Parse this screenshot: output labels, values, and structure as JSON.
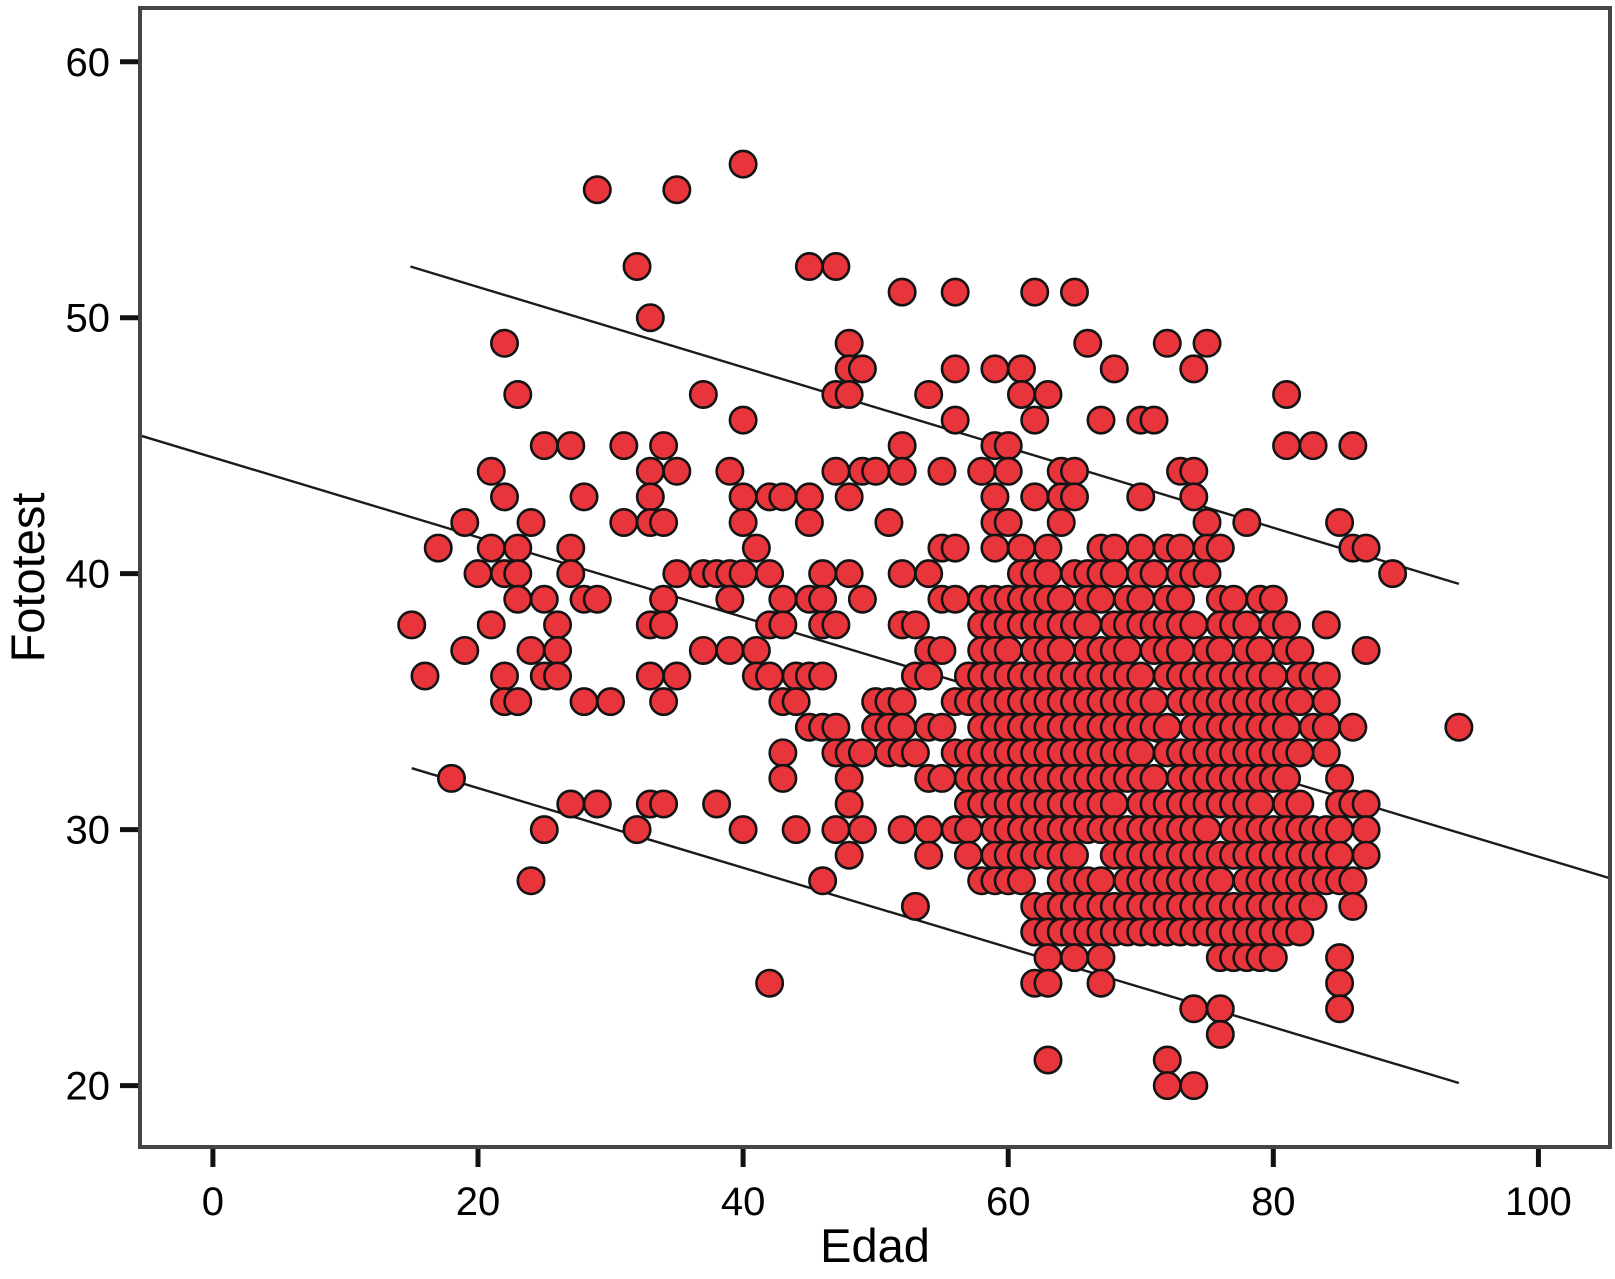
{
  "chart_data": {
    "type": "scatter",
    "title": "",
    "xlabel": "Edad",
    "ylabel": "Fototest",
    "x_ticks": [
      0,
      20,
      40,
      60,
      80,
      100
    ],
    "y_ticks": [
      20,
      30,
      40,
      50,
      60
    ],
    "xlim": [
      -5.5,
      105.4
    ],
    "ylim": [
      17.6,
      62.1
    ],
    "grid": false,
    "legend": "none",
    "marker": {
      "shape": "circle",
      "fill": "#e8353c",
      "stroke": "#141414",
      "radius_px": 13.2
    },
    "colors": {
      "background": "#ffffff",
      "frame": "#454545",
      "tick": "#111111",
      "fit_line": "#1b1b1b"
    },
    "lines": [
      {
        "name": "upper-confidence-line",
        "x1": 14.9,
        "y1": 52.0,
        "x2": 94.0,
        "y2": 39.6
      },
      {
        "name": "regression-line",
        "x1": -5.5,
        "y1": 45.4,
        "x2": 105.4,
        "y2": 28.1
      },
      {
        "name": "lower-confidence-line",
        "x1": 15.0,
        "y1": 32.4,
        "x2": 94.0,
        "y2": 20.1
      }
    ],
    "points_by_row": [
      {
        "y": 56,
        "xs": [
          40
        ]
      },
      {
        "y": 55,
        "xs": [
          29,
          35
        ]
      },
      {
        "y": 52,
        "xs": [
          32,
          45,
          47
        ]
      },
      {
        "y": 51,
        "xs": [
          52,
          56,
          62,
          65
        ]
      },
      {
        "y": 50,
        "xs": [
          33
        ]
      },
      {
        "y": 49,
        "xs": [
          22,
          48,
          66,
          72,
          75
        ]
      },
      {
        "y": 48,
        "xs": [
          48,
          49,
          56,
          59,
          61,
          68,
          74
        ]
      },
      {
        "y": 47,
        "xs": [
          23,
          37,
          47,
          48,
          54,
          61,
          63,
          81
        ]
      },
      {
        "y": 46,
        "xs": [
          40,
          56,
          62,
          67,
          70,
          71
        ]
      },
      {
        "y": 45,
        "xs": [
          25,
          27,
          31,
          34,
          52,
          59,
          60,
          81,
          83,
          86
        ]
      },
      {
        "y": 44,
        "xs": [
          21,
          33,
          35,
          39,
          47,
          49,
          50,
          52,
          55,
          58,
          60,
          64,
          65,
          73,
          74
        ]
      },
      {
        "y": 43,
        "xs": [
          22,
          28,
          33,
          40,
          42,
          43,
          45,
          48,
          59,
          62,
          64,
          65,
          70,
          74
        ]
      },
      {
        "y": 42,
        "xs": [
          19,
          24,
          31,
          33,
          34,
          40,
          45,
          51,
          59,
          60,
          64,
          75,
          78,
          85
        ]
      },
      {
        "y": 41,
        "xs": [
          17,
          21,
          23,
          27,
          41,
          55,
          56,
          59,
          61,
          63,
          67,
          68,
          70,
          72,
          73,
          75,
          76,
          86,
          87
        ]
      },
      {
        "y": 40,
        "xs": [
          20,
          22,
          23,
          27,
          35,
          37,
          38,
          39,
          40,
          42,
          46,
          48,
          52,
          54,
          61,
          62,
          63,
          65,
          66,
          67,
          68,
          70,
          71,
          73,
          74,
          75,
          89
        ]
      },
      {
        "y": 39,
        "xs": [
          23,
          25,
          28,
          29,
          34,
          39,
          43,
          45,
          46,
          49,
          55,
          56,
          58,
          59,
          60,
          61,
          62,
          63,
          64,
          66,
          67,
          69,
          70,
          72,
          73,
          76,
          77,
          79,
          80
        ]
      },
      {
        "y": 38,
        "xs": [
          15,
          21,
          26,
          33,
          34,
          42,
          43,
          46,
          47,
          52,
          53,
          58,
          59,
          60,
          61,
          62,
          63,
          64,
          65,
          66,
          68,
          69,
          70,
          71,
          72,
          73,
          74,
          76,
          77,
          78,
          80,
          81,
          84
        ]
      },
      {
        "y": 37,
        "xs": [
          19,
          24,
          26,
          37,
          39,
          41,
          54,
          55,
          58,
          59,
          60,
          62,
          63,
          64,
          66,
          67,
          68,
          69,
          71,
          72,
          73,
          75,
          76,
          78,
          79,
          81,
          82,
          87
        ]
      },
      {
        "y": 36,
        "xs": [
          16,
          22,
          25,
          26,
          33,
          35,
          41,
          42,
          44,
          45,
          46,
          53,
          54,
          57,
          58,
          59,
          60,
          61,
          62,
          63,
          64,
          65,
          66,
          67,
          68,
          69,
          70,
          72,
          73,
          74,
          75,
          76,
          77,
          78,
          79,
          80,
          82,
          83,
          84
        ]
      },
      {
        "y": 35,
        "xs": [
          22,
          23,
          28,
          30,
          34,
          43,
          44,
          50,
          51,
          52,
          56,
          57,
          58,
          59,
          60,
          61,
          62,
          63,
          64,
          65,
          66,
          67,
          68,
          69,
          70,
          71,
          73,
          74,
          75,
          76,
          77,
          78,
          79,
          80,
          81,
          82,
          84
        ]
      },
      {
        "y": 34,
        "xs": [
          45,
          46,
          47,
          50,
          51,
          52,
          54,
          55,
          58,
          59,
          60,
          61,
          62,
          63,
          64,
          65,
          66,
          67,
          68,
          69,
          70,
          71,
          72,
          74,
          75,
          76,
          77,
          78,
          79,
          80,
          81,
          83,
          84,
          86,
          94
        ]
      },
      {
        "y": 33,
        "xs": [
          43,
          47,
          48,
          49,
          51,
          52,
          53,
          56,
          57,
          58,
          59,
          60,
          61,
          62,
          63,
          64,
          65,
          66,
          67,
          68,
          69,
          70,
          72,
          73,
          74,
          75,
          76,
          77,
          78,
          79,
          80,
          81,
          82,
          84
        ]
      },
      {
        "y": 32,
        "xs": [
          18,
          43,
          48,
          54,
          55,
          57,
          58,
          59,
          60,
          61,
          62,
          63,
          64,
          65,
          66,
          67,
          68,
          69,
          70,
          71,
          73,
          74,
          75,
          76,
          77,
          78,
          79,
          80,
          81,
          85
        ]
      },
      {
        "y": 31,
        "xs": [
          27,
          29,
          33,
          34,
          38,
          48,
          57,
          58,
          59,
          60,
          61,
          62,
          63,
          64,
          65,
          66,
          67,
          68,
          70,
          71,
          72,
          73,
          74,
          75,
          76,
          77,
          78,
          79,
          81,
          82,
          85,
          86,
          87
        ]
      },
      {
        "y": 30,
        "xs": [
          25,
          32,
          40,
          44,
          47,
          49,
          52,
          54,
          56,
          57,
          59,
          60,
          61,
          62,
          63,
          64,
          65,
          66,
          67,
          68,
          69,
          70,
          71,
          72,
          73,
          74,
          75,
          77,
          78,
          79,
          80,
          81,
          82,
          83,
          84,
          85,
          87
        ]
      },
      {
        "y": 29,
        "xs": [
          48,
          54,
          57,
          59,
          60,
          61,
          62,
          63,
          64,
          65,
          68,
          69,
          70,
          71,
          72,
          73,
          74,
          75,
          76,
          77,
          78,
          79,
          80,
          81,
          82,
          83,
          84,
          85,
          87
        ]
      },
      {
        "y": 28,
        "xs": [
          24,
          46,
          58,
          59,
          60,
          61,
          64,
          65,
          66,
          67,
          69,
          70,
          71,
          72,
          73,
          74,
          75,
          76,
          78,
          79,
          80,
          81,
          82,
          83,
          84,
          85,
          86
        ]
      },
      {
        "y": 27,
        "xs": [
          53,
          62,
          63,
          64,
          65,
          66,
          67,
          68,
          69,
          70,
          71,
          72,
          73,
          74,
          75,
          76,
          77,
          78,
          79,
          80,
          81,
          82,
          83,
          86
        ]
      },
      {
        "y": 26,
        "xs": [
          62,
          63,
          64,
          65,
          66,
          67,
          68,
          69,
          70,
          71,
          72,
          73,
          74,
          75,
          76,
          77,
          78,
          79,
          80,
          81,
          82
        ]
      },
      {
        "y": 25,
        "xs": [
          63,
          65,
          67,
          76,
          77,
          78,
          79,
          80,
          85
        ]
      },
      {
        "y": 24,
        "xs": [
          42,
          62,
          63,
          67,
          85
        ]
      },
      {
        "y": 23,
        "xs": [
          74,
          76,
          85
        ]
      },
      {
        "y": 22,
        "xs": [
          76
        ]
      },
      {
        "y": 21,
        "xs": [
          63,
          72
        ]
      },
      {
        "y": 20,
        "xs": [
          72,
          74
        ]
      }
    ]
  }
}
